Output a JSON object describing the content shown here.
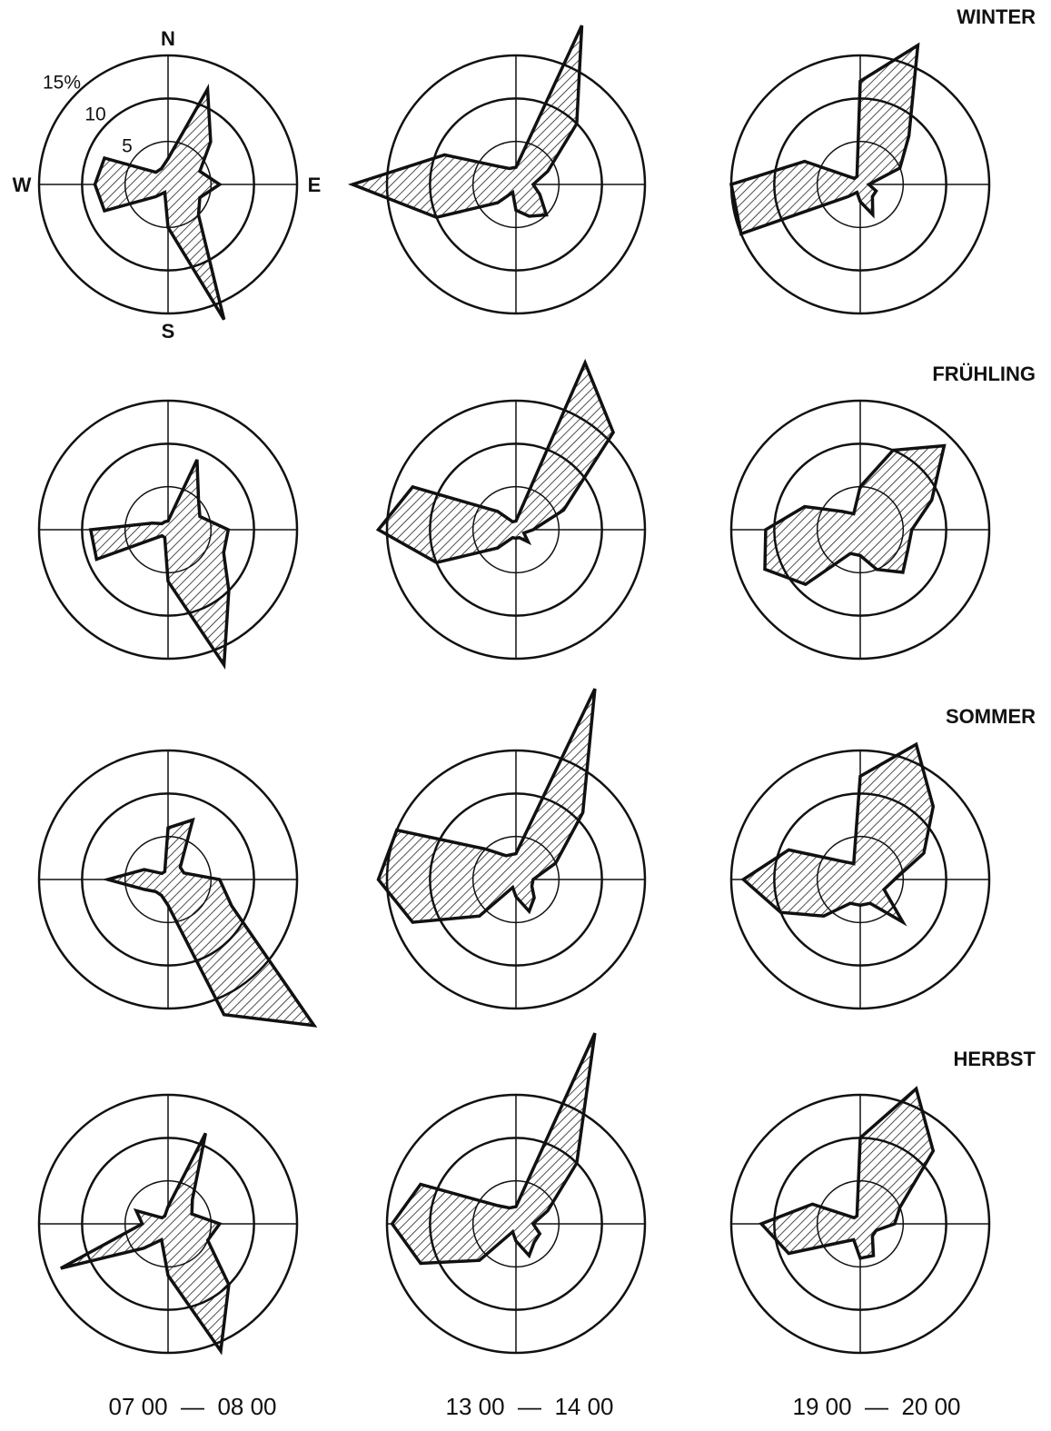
{
  "chart_data": {
    "type": "windrose",
    "directions": [
      "N",
      null,
      null,
      null,
      "E",
      null,
      null,
      null,
      "S",
      null,
      null,
      null,
      "W",
      null,
      null,
      null
    ],
    "rlim": [
      0,
      15
    ],
    "rticks": [
      5,
      10,
      {
        "value": 15,
        "label": "15%"
      }
    ],
    "seasons": [
      "WINTER",
      "FRÜHLING",
      "SOMMER",
      "HERBST"
    ],
    "times": [
      "07 00  —  08 00",
      "13 00  —  14 00",
      "19 00  —  20 00"
    ],
    "roses": [
      [
        [
          3,
          12,
          7,
          4,
          6,
          4,
          5,
          17,
          5,
          1,
          2,
          8,
          8.5,
          8,
          2,
          2
        ],
        [
          2,
          20,
          10,
          4,
          2,
          3,
          5,
          4,
          3,
          1,
          3,
          10,
          19,
          9,
          3,
          2
        ],
        [
          12,
          17.5,
          8,
          5,
          1,
          2,
          2,
          3.8,
          2,
          1,
          2,
          15,
          15,
          7,
          1,
          1
        ]
      ],
      [
        [
          1,
          8.8,
          5,
          4,
          7,
          7,
          10,
          17,
          6,
          1,
          1,
          9,
          9,
          2,
          1,
          1
        ],
        [
          1,
          21,
          16,
          6,
          2,
          1,
          2,
          1,
          1,
          1,
          3,
          10,
          16,
          13,
          3,
          1
        ],
        [
          5,
          10,
          13.8,
          9,
          6,
          6,
          7,
          5,
          3,
          3,
          9,
          12,
          11,
          7,
          3,
          2
        ]
      ],
      [
        [
          6,
          7.5,
          2,
          2,
          6,
          8,
          24,
          17,
          3,
          2,
          2,
          3,
          7,
          3,
          1,
          1
        ],
        [
          3,
          24,
          11,
          5,
          2,
          2,
          3,
          4,
          2,
          1,
          6,
          13,
          16,
          15,
          5,
          3
        ],
        [
          12,
          17,
          12,
          8,
          4,
          3,
          7,
          3,
          3,
          3,
          6,
          10,
          13.6,
          9,
          3,
          2
        ]
      ],
      [
        [
          2,
          11.4,
          4,
          3,
          6,
          5,
          10,
          16,
          6,
          2,
          4,
          13.5,
          3,
          4,
          1,
          1
        ],
        [
          2,
          24,
          10,
          4,
          2,
          3,
          3,
          4,
          2,
          1,
          6,
          12,
          14.4,
          12,
          3,
          2
        ],
        [
          10,
          17,
          12,
          5,
          4,
          2,
          2,
          4,
          4,
          2,
          3,
          9,
          11.5,
          6,
          1,
          1
        ]
      ]
    ]
  }
}
